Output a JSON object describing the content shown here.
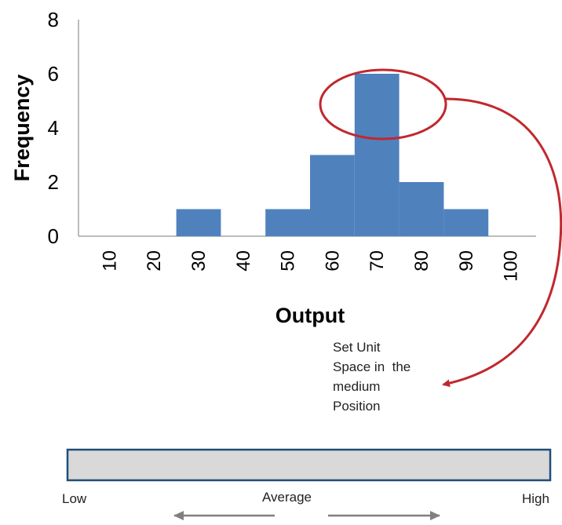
{
  "chart_data": {
    "type": "bar",
    "title": "",
    "xlabel": "Output",
    "ylabel": "Frequency",
    "categories": [
      "10",
      "20",
      "30",
      "40",
      "50",
      "60",
      "70",
      "80",
      "90",
      "100"
    ],
    "values": [
      0,
      0,
      1,
      0,
      1,
      3,
      6,
      2,
      1,
      0
    ],
    "y_ticks": [
      "0",
      "2",
      "4",
      "6",
      "8"
    ],
    "ylim": [
      0,
      8
    ],
    "bar_color": "#4f81bd",
    "grid": false,
    "legend": "none"
  },
  "annotation": {
    "note_lines": [
      "Set Unit",
      "Space in  the",
      "medium",
      "Position"
    ],
    "highlight_color": "#c0282d",
    "highlighted_category": "70"
  },
  "scale": {
    "low_label": "Low",
    "average_label": "Average",
    "high_label": "High",
    "bar_fill": "#d9d9d9",
    "arrow_color": "#7f7f7f"
  }
}
